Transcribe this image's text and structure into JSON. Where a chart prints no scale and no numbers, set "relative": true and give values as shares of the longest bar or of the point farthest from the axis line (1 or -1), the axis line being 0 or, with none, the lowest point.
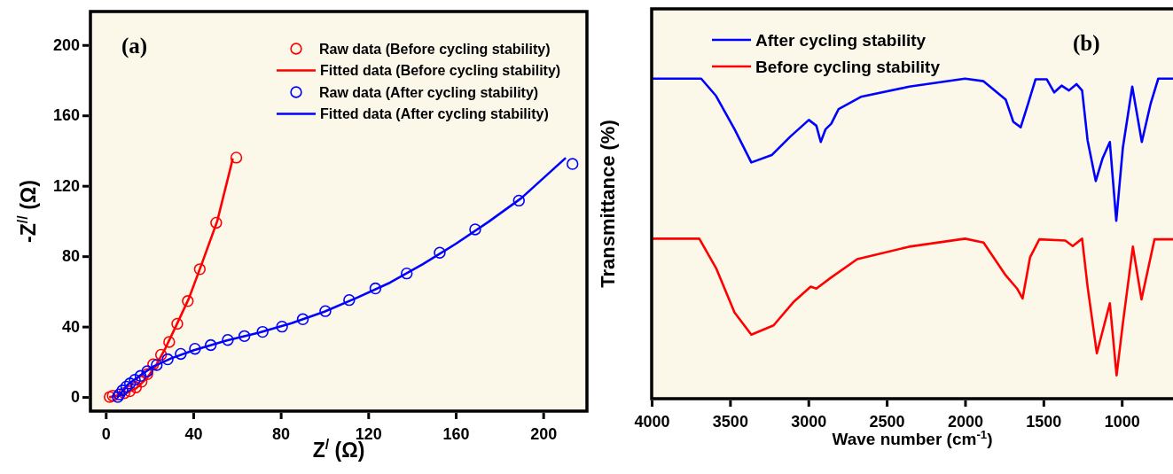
{
  "chart_data": [
    {
      "type": "scatter",
      "title": "(a)",
      "xlabel": "Z$^{/}$ (Ω)",
      "ylabel": "-Z$^{//}$ (Ω)",
      "xlim": [
        -7,
        220
      ],
      "ylim": [
        -8,
        219
      ],
      "xticks": [
        0,
        40,
        80,
        120,
        160,
        200
      ],
      "yticks": [
        0,
        40,
        80,
        120,
        160,
        200
      ],
      "grid": false,
      "legend": "top right",
      "series": [
        {
          "name": "Raw data (Before cycling stability)",
          "type": "scatter",
          "marker": "circle",
          "color": "#ff0000",
          "x": [
            1.8,
            3.2,
            8.5,
            11,
            13.8,
            16.4,
            19,
            21.7,
            25.3,
            29,
            32.7,
            37.5,
            43,
            50.5,
            59.7
          ],
          "values": [
            0,
            0.7,
            2.2,
            3.3,
            5.5,
            8.7,
            13,
            18.6,
            24,
            31.3,
            41.6,
            54.5,
            72.6,
            99,
            136
          ]
        },
        {
          "name": "Fitted data (Before cycling stability)",
          "type": "line",
          "marker": "none",
          "color": "#ff0000",
          "x": [
            2,
            8,
            14,
            19,
            23,
            27,
            32,
            38,
            44,
            51,
            58
          ],
          "values": [
            0,
            1.5,
            5,
            11,
            18,
            27,
            40,
            56,
            76,
            100,
            135
          ]
        },
        {
          "name": "Raw data (After cycling stability)",
          "type": "scatter",
          "marker": "circle",
          "color": "#0000ff",
          "x": [
            5.5,
            6.2,
            7.6,
            9.4,
            11.1,
            13.3,
            15.9,
            19,
            23.3,
            28.3,
            34.3,
            40.8,
            48,
            55.8,
            63.4,
            71.7,
            80.6,
            90.1,
            100.4,
            111.3,
            123.3,
            137.6,
            152.7,
            168.9,
            188.9,
            213.4
          ],
          "values": [
            0,
            1.5,
            3.7,
            5.9,
            7.7,
            9.8,
            12,
            14.7,
            18.2,
            21.4,
            24.5,
            27.4,
            29.5,
            32.4,
            34.6,
            37,
            40,
            44.2,
            48.8,
            55.1,
            61.7,
            70.2,
            82,
            95.2,
            111.6,
            132.4
          ]
        },
        {
          "name": "Fitted data (After cycling stability)",
          "type": "line",
          "marker": "none",
          "color": "#0000ff",
          "x": [
            5.5,
            10,
            16,
            22,
            30,
            40,
            55,
            70,
            85,
            100,
            115,
            130,
            145,
            160,
            175,
            190,
            210
          ],
          "values": [
            0,
            7,
            12.5,
            17.5,
            22,
            26.5,
            32,
            36.5,
            42,
            48.5,
            56.5,
            65,
            75.5,
            87,
            99.5,
            113,
            135.5
          ]
        }
      ]
    },
    {
      "type": "line",
      "title": "(b)",
      "xlabel": "Wave number (cm$^{-1}$)",
      "ylabel": "Transmittance (%)",
      "xlim": [
        4000,
        656
      ],
      "xticks": [
        4000,
        3500,
        3000,
        2500,
        2000,
        1500,
        1000
      ],
      "relative": true,
      "tick_labels": "x",
      "grid": false,
      "legend": "top left",
      "marker": "none",
      "series": [
        {
          "name": "After cycling stability",
          "color": "#0000ff",
          "x": [
            3993,
            3684,
            3589,
            3471,
            3364,
            3234,
            3115,
            2997,
            2949,
            2921,
            2890,
            2854,
            2807,
            2665,
            2356,
            2000,
            1882,
            1740,
            1692,
            1645,
            1597,
            1550,
            1479,
            1431,
            1384,
            1337,
            1289,
            1253,
            1218,
            1166,
            1123,
            1076,
            1035,
            993,
            933,
            872,
            815,
            767,
            660
          ],
          "values": [
            1.0,
            1.0,
            0.946,
            0.842,
            0.738,
            0.761,
            0.819,
            0.871,
            0.853,
            0.802,
            0.842,
            0.859,
            0.905,
            0.943,
            0.975,
            1.0,
            0.992,
            0.934,
            0.865,
            0.848,
            0.923,
            0.998,
            0.998,
            0.957,
            0.978,
            0.963,
            0.983,
            0.963,
            0.807,
            0.68,
            0.75,
            0.802,
            0.556,
            0.784,
            0.975,
            0.802,
            0.923,
            1.0,
            1.0
          ]
        },
        {
          "name": "Before cycling stability",
          "color": "#ff0000",
          "x": [
            3993,
            3696,
            3589,
            3471,
            3364,
            3222,
            3091,
            2985,
            2949,
            2854,
            2688,
            2356,
            2000,
            1882,
            1740,
            1668,
            1633,
            1585,
            1526,
            1360,
            1313,
            1253,
            1218,
            1159,
            1076,
            1033,
            993,
            929,
            874,
            791,
            660
          ],
          "values": [
            0.5,
            0.5,
            0.408,
            0.269,
            0.2,
            0.229,
            0.304,
            0.35,
            0.344,
            0.379,
            0.436,
            0.475,
            0.5,
            0.488,
            0.385,
            0.344,
            0.313,
            0.442,
            0.498,
            0.494,
            0.477,
            0.5,
            0.35,
            0.142,
            0.298,
            0.073,
            0.235,
            0.475,
            0.31,
            0.498,
            0.498
          ]
        }
      ]
    }
  ]
}
